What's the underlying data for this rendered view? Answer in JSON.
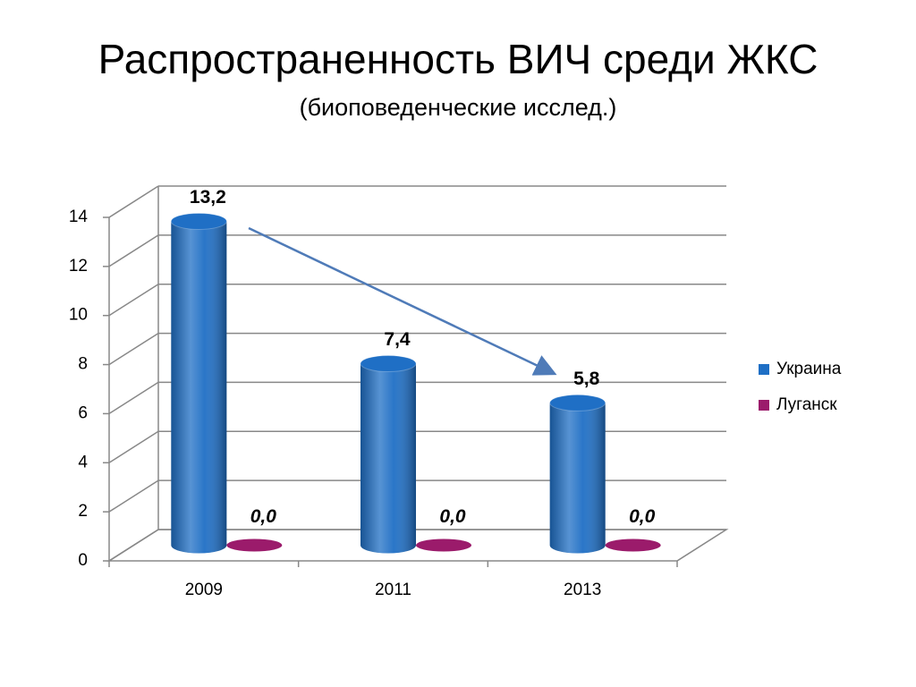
{
  "chart_data": {
    "type": "bar3d",
    "title": "Распространенность ВИЧ среди ЖКС",
    "subtitle": "(биоповеденческие исслед.)",
    "categories": [
      "2009",
      "2011",
      "2013"
    ],
    "series": [
      {
        "name": "Украина",
        "color": "#1f6fc5",
        "values": [
          13.2,
          7.4,
          5.8
        ],
        "value_labels": [
          "13,2",
          "7,4",
          "5,8"
        ]
      },
      {
        "name": "Луганск",
        "color": "#9b1b6b",
        "values": [
          0,
          0,
          0
        ],
        "value_labels": [
          "0,0",
          "0,0",
          "0,0"
        ]
      }
    ],
    "ylim": [
      0,
      14
    ],
    "yticks": [
      0,
      2,
      4,
      6,
      8,
      10,
      12,
      14
    ],
    "grid": true,
    "legend": "right"
  }
}
